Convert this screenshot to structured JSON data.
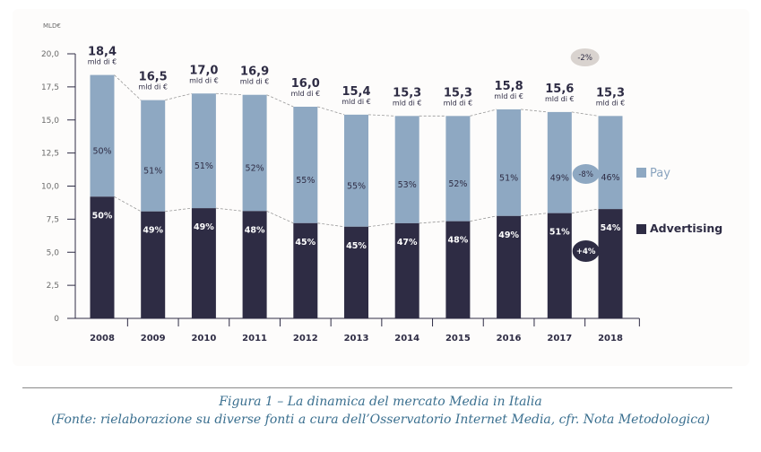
{
  "chart_data": {
    "type": "bar",
    "stacked": true,
    "unit_label": "MLD€",
    "categories": [
      "2008",
      "2009",
      "2010",
      "2011",
      "2012",
      "2013",
      "2014",
      "2015",
      "2016",
      "2017",
      "2018"
    ],
    "totals": [
      18.4,
      16.5,
      17.0,
      16.9,
      16.0,
      15.4,
      15.3,
      15.3,
      15.8,
      15.6,
      15.3
    ],
    "total_labels": [
      "18,4",
      "16,5",
      "17,0",
      "16,9",
      "16,0",
      "15,4",
      "15,3",
      "15,3",
      "15,8",
      "15,6",
      "15,3"
    ],
    "total_unit": "mld di €",
    "series": [
      {
        "name": "Advertising",
        "color": "#2e2c44",
        "share_pct": [
          50,
          49,
          49,
          48,
          45,
          45,
          47,
          48,
          49,
          51,
          54
        ],
        "labels": [
          "50%",
          "49%",
          "49%",
          "48%",
          "45%",
          "45%",
          "47%",
          "48%",
          "49%",
          "51%",
          "54%"
        ]
      },
      {
        "name": "Pay",
        "color": "#8ea8c2",
        "share_pct": [
          50,
          51,
          51,
          52,
          55,
          55,
          53,
          52,
          51,
          49,
          46
        ],
        "labels": [
          "50%",
          "51%",
          "51%",
          "52%",
          "55%",
          "55%",
          "53%",
          "52%",
          "51%",
          "49%",
          "46%"
        ]
      }
    ],
    "yticks": [
      "0",
      "2,5",
      "5,0",
      "7,5",
      "10,0",
      "12,5",
      "15,0",
      "17,5",
      "20,0"
    ],
    "ytick_values": [
      0,
      2.5,
      5,
      7.5,
      10,
      12.5,
      15,
      17.5,
      20
    ],
    "ylim": [
      0,
      20
    ],
    "legend": {
      "position": "right",
      "items": [
        "Pay",
        "Advertising"
      ]
    },
    "annotations": [
      {
        "text": "-2%",
        "refers_to": "total 2017-2018"
      },
      {
        "text": "-8%",
        "refers_to": "Pay 2017-2018"
      },
      {
        "text": "+4%",
        "refers_to": "Advertising 2017-2018"
      }
    ],
    "grid": false,
    "xlabel": "",
    "ylabel": "MLD€"
  },
  "colors": {
    "advertising": "#2e2c44",
    "pay": "#8ea8c2",
    "bubble_total": "#d9d3cf",
    "caption": "#3a6f8f"
  },
  "caption": {
    "title": "Figura 1 – La dinamica del mercato Media in Italia",
    "source": "(Fonte: rielaborazione su diverse fonti a cura dell’Osservatorio Internet Media, cfr. Nota Metodologica)"
  }
}
